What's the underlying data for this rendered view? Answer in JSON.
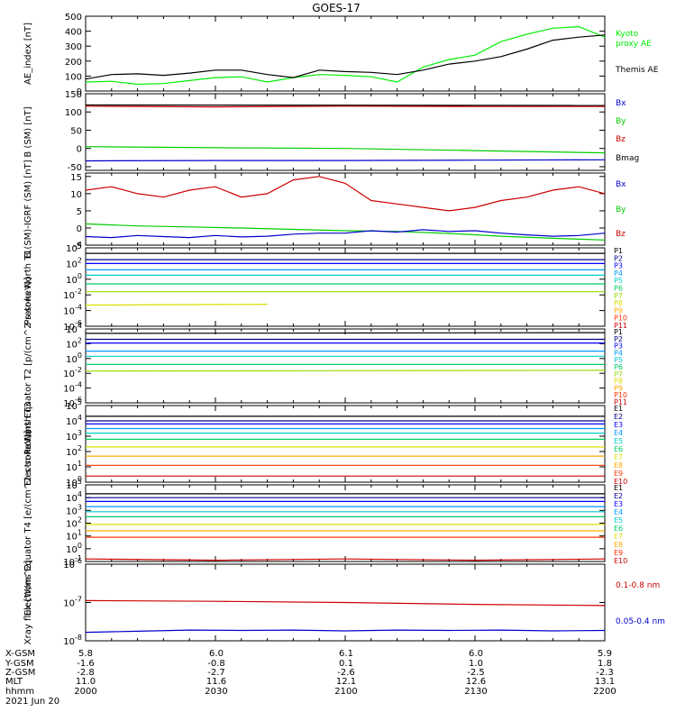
{
  "chart_data": [
    {
      "type": "line",
      "title": "GOES-17",
      "ylabel": "AE_index [nT]",
      "ylim": [
        0,
        500
      ],
      "yticks": [
        "500",
        "400",
        "300",
        "200",
        "100",
        "0"
      ],
      "legend": [
        "Kyoto proxy AE",
        "Themis AE"
      ],
      "legend_lines": [
        [
          "Kyoto",
          "proxy AE"
        ],
        [
          "Themis AE"
        ]
      ],
      "series": [
        {
          "name": "Kyoto proxy AE",
          "color": "#00ee00",
          "x": [
            0,
            10,
            20,
            30,
            40,
            50,
            60,
            70,
            80,
            90,
            100,
            110,
            120,
            130,
            140,
            150,
            160,
            170,
            180,
            190,
            200
          ],
          "y": [
            60,
            65,
            45,
            50,
            70,
            90,
            95,
            60,
            90,
            110,
            105,
            95,
            60,
            160,
            210,
            240,
            330,
            380,
            420,
            430,
            360
          ]
        },
        {
          "name": "Themis AE",
          "color": "#000000",
          "x": [
            0,
            10,
            20,
            30,
            40,
            50,
            60,
            70,
            80,
            90,
            100,
            110,
            120,
            130,
            140,
            150,
            160,
            170,
            180,
            190,
            200
          ],
          "y": [
            80,
            110,
            115,
            105,
            120,
            140,
            140,
            110,
            90,
            140,
            130,
            125,
            110,
            140,
            180,
            200,
            230,
            280,
            340,
            360,
            375
          ]
        }
      ]
    },
    {
      "type": "line",
      "ylabel": "B (SM) [nT]",
      "ylim": [
        -60,
        150
      ],
      "yticks": [
        "150",
        "100",
        "50",
        "0",
        "-50"
      ],
      "legend": [
        "Bx",
        "By",
        "Bz",
        "Bmag"
      ],
      "series": [
        {
          "name": "Bmag",
          "color": "#000000",
          "x": [
            0,
            200
          ],
          "y": [
            119,
            118
          ]
        },
        {
          "name": "Bz",
          "color": "#cc0000",
          "x": [
            0,
            50,
            100,
            150,
            200
          ],
          "y": [
            116,
            114,
            116,
            115,
            115
          ]
        },
        {
          "name": "By",
          "color": "#00cc00",
          "x": [
            0,
            50,
            100,
            150,
            200
          ],
          "y": [
            5,
            2,
            0,
            -6,
            -12
          ]
        },
        {
          "name": "Bx",
          "color": "#0000cc",
          "x": [
            0,
            50,
            100,
            150,
            200
          ],
          "y": [
            -34,
            -33,
            -33,
            -32,
            -31
          ]
        }
      ]
    },
    {
      "type": "line",
      "ylabel": "B (SM)-IGRF (SM) [nT]",
      "ylim": [
        -5,
        16
      ],
      "yticks": [
        "15",
        "10",
        "5",
        "0",
        "-5"
      ],
      "legend": [
        "Bx",
        "By",
        "Bz"
      ],
      "series": [
        {
          "name": "Bz",
          "color": "#cc0000",
          "x": [
            0,
            10,
            20,
            30,
            40,
            50,
            60,
            70,
            80,
            90,
            100,
            110,
            120,
            130,
            140,
            150,
            160,
            170,
            180,
            190,
            200
          ],
          "y": [
            11,
            12,
            10,
            9,
            11,
            12,
            9,
            10,
            14,
            15,
            13,
            8,
            7,
            6,
            5,
            6,
            8,
            9,
            11,
            12,
            10
          ]
        },
        {
          "name": "By",
          "color": "#00cc00",
          "x": [
            0,
            20,
            40,
            60,
            80,
            100,
            120,
            140,
            160,
            180,
            200
          ],
          "y": [
            1.2,
            0.6,
            0.3,
            0,
            -0.4,
            -0.8,
            -1,
            -1.6,
            -2.4,
            -3,
            -3.5
          ]
        },
        {
          "name": "Bx",
          "color": "#0000cc",
          "x": [
            0,
            10,
            20,
            30,
            40,
            50,
            60,
            70,
            80,
            90,
            100,
            110,
            120,
            130,
            140,
            150,
            160,
            170,
            180,
            190,
            200
          ],
          "y": [
            -2.5,
            -2.8,
            -2.2,
            -2.5,
            -2.8,
            -2.2,
            -2.6,
            -2.4,
            -1.8,
            -1.5,
            -1.5,
            -0.8,
            -1.2,
            -0.5,
            -1,
            -0.8,
            -1.5,
            -2,
            -2.4,
            -2.2,
            -1.5
          ]
        }
      ]
    },
    {
      "type": "line",
      "ylabel": "Protons North T1",
      "ylog": true,
      "ylim": [
        -6,
        4
      ],
      "yticks": [
        "10^4",
        "10^2",
        "10^0",
        "10^-2",
        "10^-4",
        "10^-6"
      ],
      "legend": [
        "P1",
        "P2",
        "P3",
        "P4",
        "P5",
        "P6",
        "P7",
        "P8",
        "P9",
        "P10",
        "P11"
      ],
      "legend_colors": [
        "#000000",
        "#000088",
        "#0000ff",
        "#0099ff",
        "#00cccc",
        "#00cc66",
        "#99dd00",
        "#dddd00",
        "#ffaa00",
        "#ff3300",
        "#cc0000"
      ],
      "series": [
        {
          "name": "P1",
          "color": "#000000",
          "x": [
            0,
            200
          ],
          "y": [
            3.3,
            3.3
          ]
        },
        {
          "name": "P2",
          "color": "#000088",
          "x": [
            0,
            200
          ],
          "y": [
            2.5,
            2.5
          ]
        },
        {
          "name": "P3",
          "color": "#0000ff",
          "x": [
            0,
            200
          ],
          "y": [
            2.0,
            2.0
          ]
        },
        {
          "name": "P4",
          "color": "#0099ff",
          "x": [
            0,
            200
          ],
          "y": [
            1.2,
            1.2
          ]
        },
        {
          "name": "P5",
          "color": "#00cccc",
          "x": [
            0,
            200
          ],
          "y": [
            0.5,
            0.5
          ]
        },
        {
          "name": "P6",
          "color": "#00cc66",
          "x": [
            0,
            200
          ],
          "y": [
            -0.6,
            -0.6
          ]
        },
        {
          "name": "P7",
          "color": "#99dd00",
          "x": [
            0,
            200
          ],
          "y": [
            -1.6,
            -1.6
          ]
        },
        {
          "name": "P8",
          "color": "#dddd00",
          "x": [
            0,
            70
          ],
          "y": [
            -3.3,
            -3.2
          ]
        }
      ]
    },
    {
      "type": "line",
      "ylabel": "Protons Equator T2 [p/(cm^2-s-sr-keV)]",
      "ylog": true,
      "ylim": [
        -6,
        4
      ],
      "yticks": [
        "10^4",
        "10^2",
        "10^0",
        "10^-2",
        "10^-4",
        "10^-6"
      ],
      "legend": [
        "P1",
        "P2",
        "P3",
        "P4",
        "P5",
        "P6",
        "P7",
        "P8",
        "P9",
        "P10",
        "P11"
      ],
      "legend_colors": [
        "#000000",
        "#000088",
        "#0000ff",
        "#0099ff",
        "#00cccc",
        "#00cc66",
        "#99dd00",
        "#dddd00",
        "#ffaa00",
        "#ff3300",
        "#cc0000"
      ],
      "series": [
        {
          "name": "P1",
          "color": "#000000",
          "x": [
            0,
            200
          ],
          "y": [
            3.4,
            3.5
          ]
        },
        {
          "name": "P2",
          "color": "#000088",
          "x": [
            0,
            200
          ],
          "y": [
            2.6,
            2.6
          ]
        },
        {
          "name": "P3",
          "color": "#0000ff",
          "x": [
            0,
            200
          ],
          "y": [
            2.1,
            2.1
          ]
        },
        {
          "name": "P4",
          "color": "#0099ff",
          "x": [
            0,
            200
          ],
          "y": [
            1.0,
            1.0
          ]
        },
        {
          "name": "P5",
          "color": "#00cccc",
          "x": [
            0,
            200
          ],
          "y": [
            0.3,
            0.3
          ]
        },
        {
          "name": "P6",
          "color": "#00cc66",
          "x": [
            0,
            200
          ],
          "y": [
            -0.8,
            -0.8
          ]
        },
        {
          "name": "P7",
          "color": "#99dd00",
          "x": [
            0,
            200
          ],
          "y": [
            -1.7,
            -1.6
          ]
        }
      ]
    },
    {
      "type": "line",
      "ylabel": "Electrons North T3",
      "ylog": true,
      "ylim": [
        0,
        5
      ],
      "yticks": [
        "10^5",
        "10^4",
        "10^3",
        "10^2",
        "10^1",
        "10^0"
      ],
      "legend": [
        "E1",
        "E2",
        "E3",
        "E4",
        "E5",
        "E6",
        "E7",
        "E8",
        "E9",
        "E10"
      ],
      "legend_colors": [
        "#000000",
        "#000088",
        "#0000ff",
        "#0099ff",
        "#00cccc",
        "#00cc66",
        "#dddd00",
        "#ffaa00",
        "#ff3300",
        "#cc0000"
      ],
      "series": [
        {
          "name": "E1",
          "color": "#000000",
          "x": [
            0,
            200
          ],
          "y": [
            4.3,
            4.3
          ]
        },
        {
          "name": "E2",
          "color": "#000088",
          "x": [
            0,
            200
          ],
          "y": [
            4.0,
            4.0
          ]
        },
        {
          "name": "E3",
          "color": "#0000ff",
          "x": [
            0,
            200
          ],
          "y": [
            3.8,
            3.8
          ]
        },
        {
          "name": "E4",
          "color": "#0099ff",
          "x": [
            0,
            200
          ],
          "y": [
            3.5,
            3.5
          ]
        },
        {
          "name": "E5",
          "color": "#00cccc",
          "x": [
            0,
            200
          ],
          "y": [
            3.2,
            3.2
          ]
        },
        {
          "name": "E6",
          "color": "#00cc66",
          "x": [
            0,
            200
          ],
          "y": [
            2.8,
            2.8
          ]
        },
        {
          "name": "E7",
          "color": "#dddd00",
          "x": [
            0,
            200
          ],
          "y": [
            2.3,
            2.3
          ]
        },
        {
          "name": "E8",
          "color": "#ffaa00",
          "x": [
            0,
            200
          ],
          "y": [
            1.7,
            1.7
          ]
        },
        {
          "name": "E9",
          "color": "#ff3300",
          "x": [
            0,
            200
          ],
          "y": [
            1.1,
            1.1
          ]
        },
        {
          "name": "E10",
          "color": "#cc0000",
          "x": [
            0,
            200
          ],
          "y": [
            0.4,
            0.4
          ]
        }
      ]
    },
    {
      "type": "line",
      "ylabel": "Electrons Equator T4 [e/(cm^2-s-sr-keV)]",
      "ylog": true,
      "ylim": [
        -1,
        5
      ],
      "yticks": [
        "10^5",
        "10^4",
        "10^3",
        "10^2",
        "10^1",
        "10^0",
        "10^-1"
      ],
      "legend": [
        "E1",
        "E2",
        "E3",
        "E4",
        "E5",
        "E6",
        "E7",
        "E8",
        "E9",
        "E10"
      ],
      "legend_colors": [
        "#000000",
        "#000088",
        "#0000ff",
        "#0099ff",
        "#00cccc",
        "#00cc66",
        "#dddd00",
        "#ffaa00",
        "#ff3300",
        "#cc0000"
      ],
      "series": [
        {
          "name": "E1",
          "color": "#000000",
          "x": [
            0,
            200
          ],
          "y": [
            4.3,
            4.3
          ]
        },
        {
          "name": "E2",
          "color": "#000088",
          "x": [
            0,
            200
          ],
          "y": [
            4.0,
            4.0
          ]
        },
        {
          "name": "E3",
          "color": "#0000ff",
          "x": [
            0,
            200
          ],
          "y": [
            3.7,
            3.7
          ]
        },
        {
          "name": "E4",
          "color": "#0099ff",
          "x": [
            0,
            200
          ],
          "y": [
            3.3,
            3.3
          ]
        },
        {
          "name": "E5",
          "color": "#00cccc",
          "x": [
            0,
            200
          ],
          "y": [
            2.9,
            2.9
          ]
        },
        {
          "name": "E6",
          "color": "#00cc66",
          "x": [
            0,
            200
          ],
          "y": [
            2.5,
            2.5
          ]
        },
        {
          "name": "E7",
          "color": "#dddd00",
          "x": [
            0,
            200
          ],
          "y": [
            1.9,
            1.9
          ]
        },
        {
          "name": "E8",
          "color": "#ffaa00",
          "x": [
            0,
            200
          ],
          "y": [
            1.4,
            1.4
          ]
        },
        {
          "name": "E9",
          "color": "#ff3300",
          "x": [
            0,
            200
          ],
          "y": [
            0.9,
            0.9
          ]
        },
        {
          "name": "E10",
          "color": "#cc0000",
          "x": [
            0,
            50,
            100,
            150,
            200
          ],
          "y": [
            -0.8,
            -0.9,
            -0.8,
            -0.9,
            -0.8
          ]
        }
      ]
    },
    {
      "type": "line",
      "ylabel": "Xray flux [W/m^2]",
      "ylog": true,
      "ylim": [
        -8,
        -6
      ],
      "yticks": [
        "10^-6",
        "10^-7",
        "10^-8"
      ],
      "legend": [
        "0.1-0.8 nm",
        "0.05-0.4 nm"
      ],
      "series": [
        {
          "name": "0.1-0.8 nm",
          "color": "#cc0000",
          "x": [
            0,
            50,
            100,
            150,
            200
          ],
          "y": [
            -6.95,
            -6.97,
            -7.0,
            -7.05,
            -7.08
          ]
        },
        {
          "name": "0.05-0.4 nm",
          "color": "#0000cc",
          "x": [
            0,
            20,
            40,
            60,
            80,
            100,
            120,
            140,
            160,
            180,
            200
          ],
          "y": [
            -7.78,
            -7.75,
            -7.72,
            -7.73,
            -7.72,
            -7.74,
            -7.72,
            -7.73,
            -7.72,
            -7.74,
            -7.73
          ]
        }
      ]
    }
  ],
  "axis_table": {
    "rows": [
      {
        "label": "X-GSM",
        "values": [
          "5.8",
          "6.0",
          "6.1",
          "6.0",
          "5.9"
        ]
      },
      {
        "label": "Y-GSM",
        "values": [
          "-1.6",
          "-0.8",
          "0.1",
          "1.0",
          "1.8"
        ]
      },
      {
        "label": "Z-GSM",
        "values": [
          "-2.8",
          "-2.7",
          "-2.6",
          "-2.5",
          "-2.3"
        ]
      },
      {
        "label": "MLT",
        "values": [
          "11.0",
          "11.6",
          "12.1",
          "12.6",
          "13.1"
        ]
      },
      {
        "label": "hhmm",
        "values": [
          "2000",
          "2030",
          "2100",
          "2130",
          "2200"
        ]
      }
    ],
    "date": "2021 Jun 20"
  }
}
